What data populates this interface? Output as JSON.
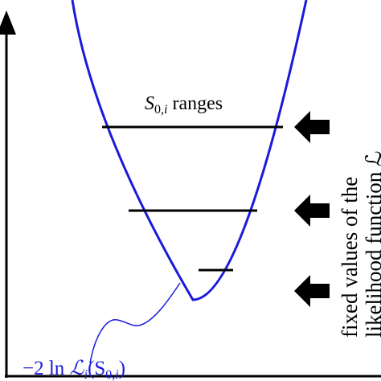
{
  "diagram": {
    "range_label": {
      "var": "S",
      "sub": "0,",
      "sub_i": "i",
      "rest": " ranges"
    },
    "curve_label": {
      "prefix": "−2 ln ",
      "L": "ℒ",
      "L_sub": "i",
      "open": "(S",
      "arg_sub": "0,",
      "arg_sub_i": "i",
      "close": ")"
    },
    "side_label": {
      "line1": "fixed values of the",
      "line2": "likelihood function ℒ"
    },
    "levels": [
      {
        "name": "upper"
      },
      {
        "name": "middle"
      },
      {
        "name": "lower"
      }
    ],
    "colors": {
      "curve": "#1a1adb",
      "ink": "#000000",
      "background": "#ffffff"
    },
    "icons": {
      "level_marker": "arrow-left-icon"
    }
  }
}
